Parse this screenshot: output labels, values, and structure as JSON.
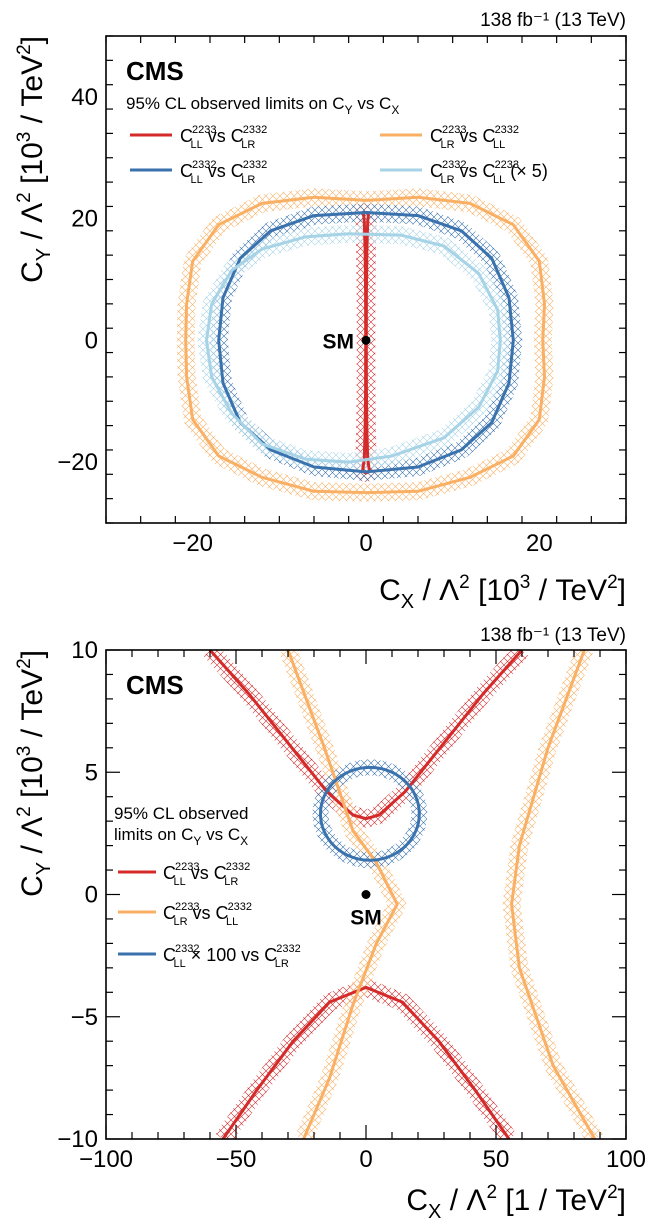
{
  "colors": {
    "red": "#d42a2a",
    "orange": "#f9b065",
    "blue": "#3a72ad",
    "lightblue": "#a6d3e6"
  },
  "chart_data": [
    {
      "type": "line",
      "lumi": "138 fb⁻¹ (13 TeV)",
      "experiment": "CMS",
      "legend_title": "95% CL observed limits on C_Y vs C_X",
      "xlabel": "C_X / Λ² [10³ / TeV²]",
      "ylabel": "C_Y / Λ² [10³ / TeV²]",
      "xlim": [
        -30,
        30
      ],
      "ylim": [
        -30,
        50
      ],
      "xticks": [
        -20,
        0,
        20
      ],
      "yticks": [
        -20,
        0,
        20,
        40
      ],
      "tick_labels_x": [
        "−20",
        "0",
        "20"
      ],
      "tick_labels_y": [
        "−20",
        "0",
        "20",
        "40"
      ],
      "series": [
        {
          "key": "s1",
          "name": "C_LL^2233 vs C_LR^2332",
          "color": "red",
          "points": [
            [
              0.3,
              21
            ],
            [
              0.2,
              19.5
            ],
            [
              0.1,
              15
            ],
            [
              0.05,
              8
            ],
            [
              0.03,
              0
            ],
            [
              0.05,
              -8
            ],
            [
              0.1,
              -15
            ],
            [
              0.2,
              -19.5
            ],
            [
              0.4,
              -21.5
            ],
            [
              0,
              -21.8
            ],
            [
              -0.4,
              -21.5
            ],
            [
              -0.2,
              -19.5
            ],
            [
              -0.1,
              -15
            ],
            [
              -0.05,
              -8
            ],
            [
              -0.03,
              0
            ],
            [
              -0.05,
              8
            ],
            [
              -0.1,
              15
            ],
            [
              -0.2,
              19.5
            ],
            [
              -0.3,
              21
            ],
            [
              0.3,
              21
            ]
          ]
        },
        {
          "key": "s2",
          "name": "C_LR^2233 vs C_LL^2332",
          "color": "orange",
          "points": [
            [
              0,
              23
            ],
            [
              6,
              23.5
            ],
            [
              12,
              22.5
            ],
            [
              17,
              19
            ],
            [
              20,
              13
            ],
            [
              20.6,
              6
            ],
            [
              20.4,
              0
            ],
            [
              20.6,
              -6
            ],
            [
              20,
              -13
            ],
            [
              17,
              -19
            ],
            [
              12,
              -22.5
            ],
            [
              6,
              -24.8
            ],
            [
              0,
              -25
            ],
            [
              -6,
              -24.8
            ],
            [
              -12,
              -22.5
            ],
            [
              -17,
              -19
            ],
            [
              -20,
              -13
            ],
            [
              -20.7,
              -6
            ],
            [
              -20.8,
              0
            ],
            [
              -20.7,
              6
            ],
            [
              -20,
              13
            ],
            [
              -17,
              19
            ],
            [
              -12,
              22.5
            ],
            [
              -6,
              23.5
            ],
            [
              0,
              23
            ]
          ]
        },
        {
          "key": "s3",
          "name": "C_LL^2332 vs C_LR^2332",
          "color": "blue",
          "points": [
            [
              0,
              21
            ],
            [
              6,
              20.5
            ],
            [
              11,
              18
            ],
            [
              14.5,
              13.5
            ],
            [
              16.5,
              7
            ],
            [
              17,
              0
            ],
            [
              16.5,
              -7
            ],
            [
              14.5,
              -13.5
            ],
            [
              11,
              -18
            ],
            [
              6,
              -20.8
            ],
            [
              0,
              -21.6
            ],
            [
              -6,
              -20.8
            ],
            [
              -11,
              -18
            ],
            [
              -14.5,
              -13.5
            ],
            [
              -16.5,
              -7
            ],
            [
              -17,
              0
            ],
            [
              -16.5,
              7
            ],
            [
              -14.5,
              13.5
            ],
            [
              -11,
              18
            ],
            [
              -6,
              20.5
            ],
            [
              0,
              21
            ]
          ]
        },
        {
          "key": "s4",
          "name": "C_LR^2332 vs C_LL^2233 (× 5)",
          "color": "lightblue",
          "points": [
            [
              -2,
              17.5
            ],
            [
              4,
              17.3
            ],
            [
              9,
              15.5
            ],
            [
              13,
              11
            ],
            [
              15.2,
              5
            ],
            [
              15.5,
              0
            ],
            [
              15.2,
              -5
            ],
            [
              13,
              -11
            ],
            [
              9,
              -16
            ],
            [
              3,
              -19
            ],
            [
              -2,
              -20
            ],
            [
              -7,
              -19.5
            ],
            [
              -12,
              -17
            ],
            [
              -15.5,
              -12
            ],
            [
              -17.8,
              -6
            ],
            [
              -18.4,
              0
            ],
            [
              -17.8,
              6
            ],
            [
              -15.5,
              11.5
            ],
            [
              -12,
              15
            ],
            [
              -7,
              17
            ],
            [
              -2,
              17.5
            ]
          ]
        }
      ],
      "legend": {
        "placement": "top-left"
      },
      "sm_label": "SM",
      "sm_point": [
        0,
        0
      ]
    },
    {
      "type": "line",
      "lumi": "138 fb⁻¹ (13 TeV)",
      "experiment": "CMS",
      "legend_title_line1": "95% CL observed",
      "legend_title_line2": "limits on C_Y vs C_X",
      "xlabel": "C_X / Λ² [1 / TeV²]",
      "ylabel": "C_Y / Λ² [10³ / TeV²]",
      "xlim": [
        -100,
        100
      ],
      "ylim": [
        -10,
        10
      ],
      "xticks": [
        -100,
        -50,
        0,
        50,
        100
      ],
      "yticks": [
        -10,
        -5,
        0,
        5,
        10
      ],
      "tick_labels_x": [
        "−100",
        "−50",
        "0",
        "50",
        "100"
      ],
      "tick_labels_y": [
        "−10",
        "−5",
        "0",
        "5",
        "10"
      ],
      "series": [
        {
          "key": "r_up",
          "name": "C_LL^2233 vs C_LR^2332",
          "color": "red",
          "points": [
            [
              -60,
              10
            ],
            [
              -45,
              8.2
            ],
            [
              -30,
              6.2
            ],
            [
              -15,
              4.2
            ],
            [
              -5,
              3.25
            ],
            [
              0,
              3.1
            ],
            [
              5,
              3.25
            ],
            [
              15,
              4.2
            ],
            [
              30,
              6.2
            ],
            [
              45,
              8.2
            ],
            [
              60,
              10
            ]
          ]
        },
        {
          "key": "r_dn",
          "name": "",
          "color": "red",
          "points": [
            [
              -55,
              -10
            ],
            [
              -42,
              -8
            ],
            [
              -28,
              -6
            ],
            [
              -14,
              -4.4
            ],
            [
              0,
              -3.8
            ],
            [
              14,
              -4.4
            ],
            [
              28,
              -6
            ],
            [
              42,
              -8
            ],
            [
              55,
              -10
            ]
          ]
        },
        {
          "key": "o_l",
          "name": "C_LR^2233 vs C_LL^2332",
          "color": "orange",
          "points": [
            [
              -30,
              10
            ],
            [
              -16,
              6
            ],
            [
              -5,
              2.6
            ],
            [
              4,
              1.3
            ],
            [
              12,
              -0.4
            ],
            [
              4,
              -2
            ],
            [
              -5,
              -4.5
            ],
            [
              -14,
              -7.5
            ],
            [
              -24,
              -10
            ]
          ]
        },
        {
          "key": "o_r",
          "name": "",
          "color": "orange",
          "points": [
            [
              84,
              10
            ],
            [
              70,
              6
            ],
            [
              59,
              2
            ],
            [
              56,
              -0.4
            ],
            [
              59,
              -3
            ],
            [
              72,
              -7
            ],
            [
              88,
              -10
            ]
          ]
        },
        {
          "key": "b",
          "name": "C_LL^2332 × 100 vs C_LR^2332",
          "color": "blue",
          "ellipse": {
            "cx": 1.5,
            "cy": 3.3,
            "rx": 19,
            "ry": 1.9
          }
        }
      ],
      "legend": {
        "placement": "middle-left"
      },
      "sm_label": "SM",
      "sm_point": [
        0,
        0
      ]
    }
  ]
}
